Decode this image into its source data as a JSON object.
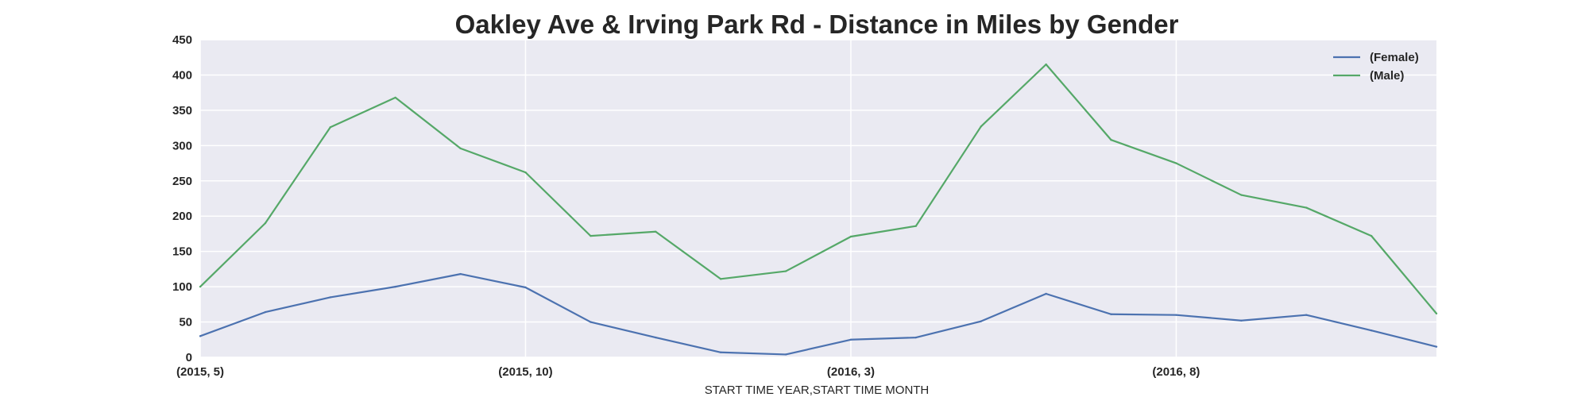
{
  "chart_data": {
    "type": "line",
    "title": "Oakley Ave & Irving Park Rd - Distance in Miles by Gender",
    "xlabel": "START TIME YEAR,START TIME MONTH",
    "ylabel": "",
    "ylim": [
      0,
      450
    ],
    "yticks": [
      0,
      50,
      100,
      150,
      200,
      250,
      300,
      350,
      400,
      450
    ],
    "x": [
      "(2015, 5)",
      "(2015, 6)",
      "(2015, 7)",
      "(2015, 8)",
      "(2015, 9)",
      "(2015, 10)",
      "(2015, 11)",
      "(2015, 12)",
      "(2016, 1)",
      "(2016, 2)",
      "(2016, 3)",
      "(2016, 4)",
      "(2016, 5)",
      "(2016, 6)",
      "(2016, 7)",
      "(2016, 8)",
      "(2016, 9)",
      "(2016, 10)",
      "(2016, 11)",
      "(2016, 12)"
    ],
    "xtick_labels": [
      "(2015, 5)",
      "(2015, 10)",
      "(2016, 3)",
      "(2016, 8)"
    ],
    "xtick_indices": [
      0,
      5,
      10,
      15
    ],
    "grid": true,
    "legend_position": "top-right",
    "series": [
      {
        "name": "(Female)",
        "color": "#4c72b0",
        "values": [
          30,
          64,
          85,
          100,
          118,
          99,
          50,
          28,
          7,
          4,
          25,
          28,
          51,
          90,
          61,
          60,
          52,
          60,
          38,
          15
        ]
      },
      {
        "name": "(Male)",
        "color": "#55a868",
        "values": [
          100,
          190,
          326,
          368,
          296,
          262,
          172,
          178,
          111,
          122,
          171,
          186,
          327,
          415,
          308,
          275,
          230,
          212,
          172,
          62
        ]
      }
    ]
  }
}
